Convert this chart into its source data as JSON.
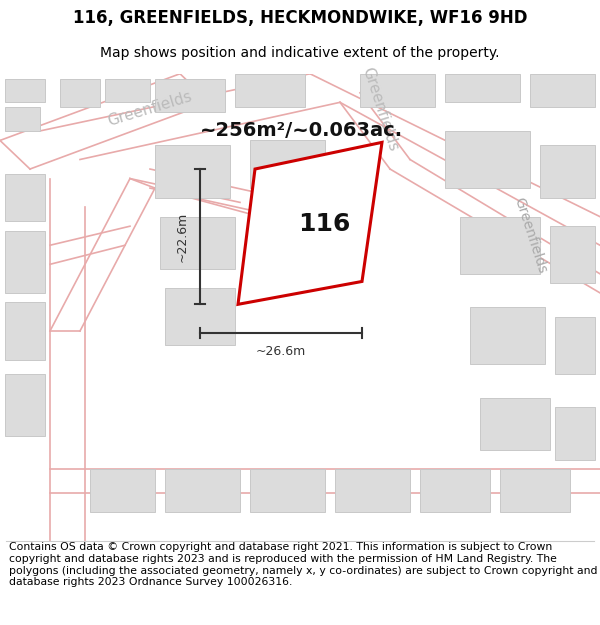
{
  "title": "116, GREENFIELDS, HECKMONDWIKE, WF16 9HD",
  "subtitle": "Map shows position and indicative extent of the property.",
  "footer": "Contains OS data © Crown copyright and database right 2021. This information is subject to Crown copyright and database rights 2023 and is reproduced with the permission of HM Land Registry. The polygons (including the associated geometry, namely x, y co-ordinates) are subject to Crown copyright and database rights 2023 Ordnance Survey 100026316.",
  "area_label": "~256m²/~0.063ac.",
  "width_label": "~26.6m",
  "height_label": "~22.6m",
  "plot_number": "116",
  "map_bg": "#f7f4f4",
  "road_line_color": "#e8aaaa",
  "building_fill": "#dcdcdc",
  "building_edge": "#c8c8c8",
  "plot_fill": "#ffffff",
  "plot_edge": "#cc0000",
  "dim_color": "#333333",
  "road_label_color": "#bbbbbb",
  "title_fontsize": 12,
  "subtitle_fontsize": 10,
  "footer_fontsize": 7.8,
  "area_fontsize": 14,
  "plot_num_fontsize": 18,
  "dim_fontsize": 9,
  "road_label_fontsize": 11
}
